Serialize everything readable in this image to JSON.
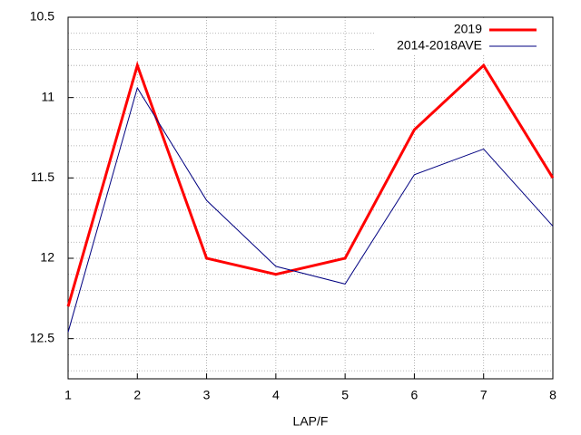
{
  "chart_data": {
    "type": "line",
    "xlabel": "LAP/F",
    "x": [
      1,
      2,
      3,
      4,
      5,
      6,
      7,
      8
    ],
    "series": [
      {
        "name": "2019",
        "color": "#ff0000",
        "width": 3,
        "values": [
          12.3,
          10.8,
          12.0,
          12.1,
          12.0,
          11.2,
          10.8,
          11.5
        ]
      },
      {
        "name": "2014-2018AVE",
        "color": "#000080",
        "width": 1,
        "values": [
          12.46,
          10.94,
          11.64,
          12.05,
          12.16,
          11.48,
          11.32,
          11.8
        ]
      }
    ],
    "xlim": [
      1,
      8
    ],
    "xticks": [
      1,
      2,
      3,
      4,
      5,
      6,
      7,
      8
    ],
    "ylim": [
      10.5,
      12.75
    ],
    "yticks": [
      10.5,
      11,
      11.5,
      12,
      12.5
    ],
    "y_reverse": true,
    "grid": true,
    "y_minor_subdivisions": 5,
    "legend": "top-right"
  }
}
